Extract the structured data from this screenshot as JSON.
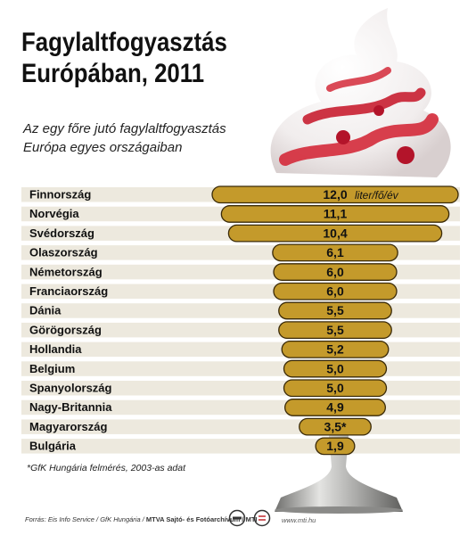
{
  "title_line1": "Fagylaltfogyasztás",
  "title_line2": "Európában, 2011",
  "subtitle_line1": "Az egy főre jutó fagylaltfogyasztás",
  "subtitle_line2": "Európa egyes országaiban",
  "footnote": "*GfK Hungária felmérés, 2003-as adat",
  "source_text": "Forrás: Eis Info Service / GfK Hungária / ",
  "source_bold": "MTVA Sajtó- és Fotóarchívum / MTI",
  "site": "www.mti.hu",
  "colors": {
    "bar": "#c49a2b",
    "row_band": "#ede9de",
    "ice_cream": "#d42a3a",
    "stand": "#9a9a98"
  },
  "chart_data": {
    "type": "bar",
    "orientation": "horizontal",
    "title": "Fagylaltfogyasztás Európában, 2011",
    "subtitle": "Az egy főre jutó fagylaltfogyasztás Európa egyes országaiban",
    "unit": "liter/fő/év",
    "categories": [
      "Finnország",
      "Norvégia",
      "Svédország",
      "Olaszország",
      "Németország",
      "Franciaország",
      "Dánia",
      "Görögország",
      "Hollandia",
      "Belgium",
      "Spanyolország",
      "Nagy-Britannia",
      "Magyarország",
      "Bulgária"
    ],
    "values": [
      12.0,
      11.1,
      10.4,
      6.1,
      6.0,
      6.0,
      5.5,
      5.5,
      5.2,
      5.0,
      5.0,
      4.9,
      3.5,
      1.9
    ],
    "value_labels": [
      "12,0",
      "11,1",
      "10,4",
      "6,1",
      "6,0",
      "6,0",
      "5,5",
      "5,5",
      "5,2",
      "5,0",
      "5,0",
      "4,9",
      "3,5*",
      "1,9"
    ],
    "annotation": "liter/fő/év",
    "xlim": [
      0,
      12.0
    ],
    "grid": false
  }
}
